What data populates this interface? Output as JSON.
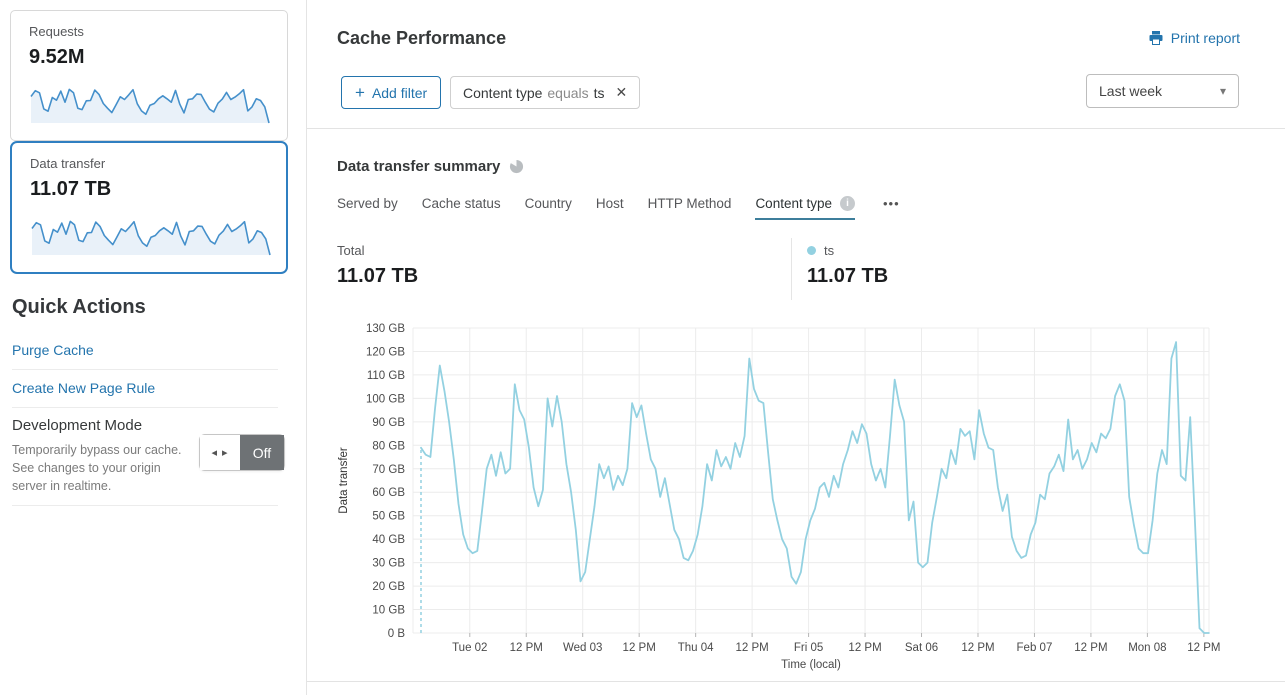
{
  "sidebar": {
    "cards": [
      {
        "label": "Requests",
        "value": "9.52M",
        "sparkline": [
          79,
          96,
          90,
          42,
          35,
          76,
          68,
          95,
          62,
          100,
          90,
          44,
          40,
          66,
          67,
          98,
          85,
          58,
          44,
          31,
          54,
          78,
          70,
          84,
          99,
          57,
          36,
          26,
          53,
          58,
          72,
          81,
          72,
          62,
          97,
          56,
          30,
          70,
          72,
          86,
          85,
          62,
          41,
          33,
          59,
          71,
          91,
          70,
          77,
          87,
          99,
          36,
          48,
          72,
          67,
          48,
          0
        ]
      },
      {
        "label": "Data transfer",
        "value": "11.07 TB",
        "selected": true,
        "sparkline": [
          79,
          96,
          90,
          42,
          35,
          76,
          68,
          95,
          62,
          100,
          90,
          44,
          40,
          66,
          67,
          98,
          85,
          58,
          44,
          31,
          54,
          78,
          70,
          84,
          99,
          57,
          36,
          26,
          53,
          58,
          72,
          81,
          72,
          62,
          97,
          56,
          30,
          70,
          72,
          86,
          85,
          62,
          41,
          33,
          59,
          71,
          91,
          70,
          77,
          87,
          99,
          36,
          48,
          72,
          67,
          48,
          0
        ]
      }
    ],
    "quick_actions": {
      "title": "Quick Actions",
      "links": [
        {
          "label": "Purge Cache"
        },
        {
          "label": "Create New Page Rule"
        }
      ],
      "development_mode": {
        "title": "Development Mode",
        "description": "Temporarily bypass our cache. See changes to your origin server in realtime.",
        "toggle_state": "Off"
      }
    }
  },
  "header": {
    "title": "Cache Performance",
    "print_report_label": "Print report"
  },
  "filter_bar": {
    "add_filter_label": "Add filter",
    "chip": {
      "field": "Content type",
      "operator": "equals",
      "value": "ts"
    },
    "time_range": "Last week"
  },
  "summary": {
    "title": "Data transfer summary",
    "tabs": [
      {
        "label": "Served by"
      },
      {
        "label": "Cache status"
      },
      {
        "label": "Country"
      },
      {
        "label": "Host"
      },
      {
        "label": "HTTP Method"
      },
      {
        "label": "Content type",
        "active": true
      }
    ],
    "total_label": "Total",
    "total_value": "11.07 TB",
    "legend": {
      "series_name": "ts",
      "series_value": "11.07 TB"
    }
  },
  "icons": {
    "plus": "+",
    "close": "✕",
    "caret": "▾",
    "ellipsis": "•••",
    "toggle_arrows": "◂ ▸",
    "info": "i"
  },
  "colors": {
    "accent_blue": "#2374ad",
    "selected_card_border": "#2f7fc1",
    "chart_line": "#93d1e1",
    "spark_line": "#4590cb",
    "spark_fill": "#e9f1f9",
    "tab_underline": "#3d7e9b",
    "toggle_off_bg": "#6e7275"
  },
  "chart_data": {
    "type": "line",
    "title": "Data transfer summary",
    "xlabel": "Time (local)",
    "ylabel": "Data transfer",
    "unit": "GB",
    "point_interval": "1 hour",
    "ylim": [
      0,
      130
    ],
    "y_tick_step": 10,
    "y_tick_labels": [
      "0 B",
      "10 GB",
      "20 GB",
      "30 GB",
      "40 GB",
      "50 GB",
      "60 GB",
      "70 GB",
      "80 GB",
      "90 GB",
      "100 GB",
      "110 GB",
      "120 GB",
      "130 GB"
    ],
    "x_tick_labels": [
      "Tue 02",
      "12 PM",
      "Wed 03",
      "12 PM",
      "Thu 04",
      "12 PM",
      "Fri 05",
      "12 PM",
      "Sat 06",
      "12 PM",
      "Feb 07",
      "12 PM",
      "Mon 08",
      "12 PM"
    ],
    "x_tick_start_index": 10.4,
    "x_tick_step_index": 12.04,
    "grid": true,
    "leading_dashed_drop": true,
    "series": [
      {
        "name": "ts",
        "color": "#93d1e1",
        "values": [
          79,
          76,
          75,
          96,
          114,
          103,
          90,
          74,
          55,
          42,
          36,
          34,
          35,
          52,
          70,
          76,
          67,
          77,
          68,
          70,
          106,
          95,
          91,
          79,
          62,
          54,
          61,
          100,
          88,
          101,
          90,
          72,
          60,
          44,
          22,
          26,
          40,
          54,
          72,
          66,
          71,
          61,
          67,
          63,
          70,
          98,
          92,
          97,
          85,
          74,
          70,
          58,
          66,
          55,
          44,
          40,
          32,
          31,
          35,
          42,
          54,
          72,
          65,
          78,
          71,
          75,
          70,
          81,
          75,
          84,
          117,
          104,
          99,
          98,
          77,
          57,
          48,
          40,
          36,
          24,
          21,
          26,
          40,
          48,
          53,
          62,
          64,
          58,
          67,
          62,
          72,
          78,
          86,
          81,
          89,
          85,
          72,
          65,
          70,
          62,
          84,
          108,
          97,
          90,
          48,
          56,
          30,
          28,
          30,
          47,
          58,
          70,
          66,
          78,
          72,
          87,
          84,
          86,
          74,
          95,
          85,
          79,
          78,
          62,
          52,
          59,
          41,
          35,
          32,
          33,
          42,
          47,
          59,
          57,
          68,
          71,
          76,
          69,
          91,
          74,
          78,
          70,
          74,
          81,
          77,
          85,
          83,
          87,
          101,
          106,
          99,
          58,
          46,
          36,
          34,
          34,
          48,
          68,
          78,
          72,
          117,
          124,
          67,
          65,
          92,
          48,
          2,
          0,
          0
        ]
      }
    ]
  }
}
